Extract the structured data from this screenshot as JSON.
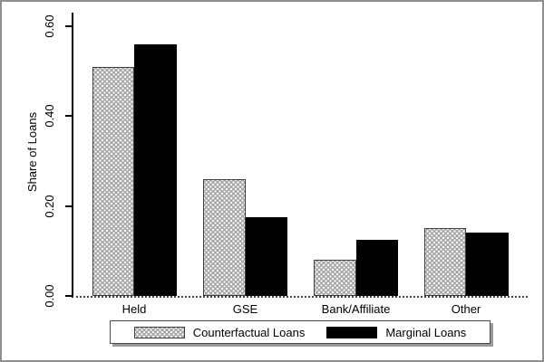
{
  "chart_data": {
    "type": "bar",
    "title": "",
    "xlabel": "",
    "ylabel": "Share of Loans",
    "categories": [
      "Held",
      "GSE",
      "Bank/Affiliate",
      "Other"
    ],
    "series": [
      {
        "name": "Counterfactual Loans",
        "color": "#a8a8a8",
        "fill_style": "gray-dot-pattern",
        "values": [
          0.51,
          0.26,
          0.08,
          0.15
        ]
      },
      {
        "name": "Marginal Loans",
        "color": "#000000",
        "fill_style": "solid-black",
        "values": [
          0.56,
          0.175,
          0.125,
          0.14
        ]
      }
    ],
    "yticks_labels": [
      "0.00",
      "0.20",
      "0.40",
      "0.60"
    ],
    "ytick_values": [
      0.0,
      0.2,
      0.4,
      0.6
    ],
    "ylim": [
      0,
      0.63
    ],
    "grid": false,
    "legend_position": "bottom",
    "axis_color": "#000000",
    "frame_border_color": "#8f8f8f"
  }
}
